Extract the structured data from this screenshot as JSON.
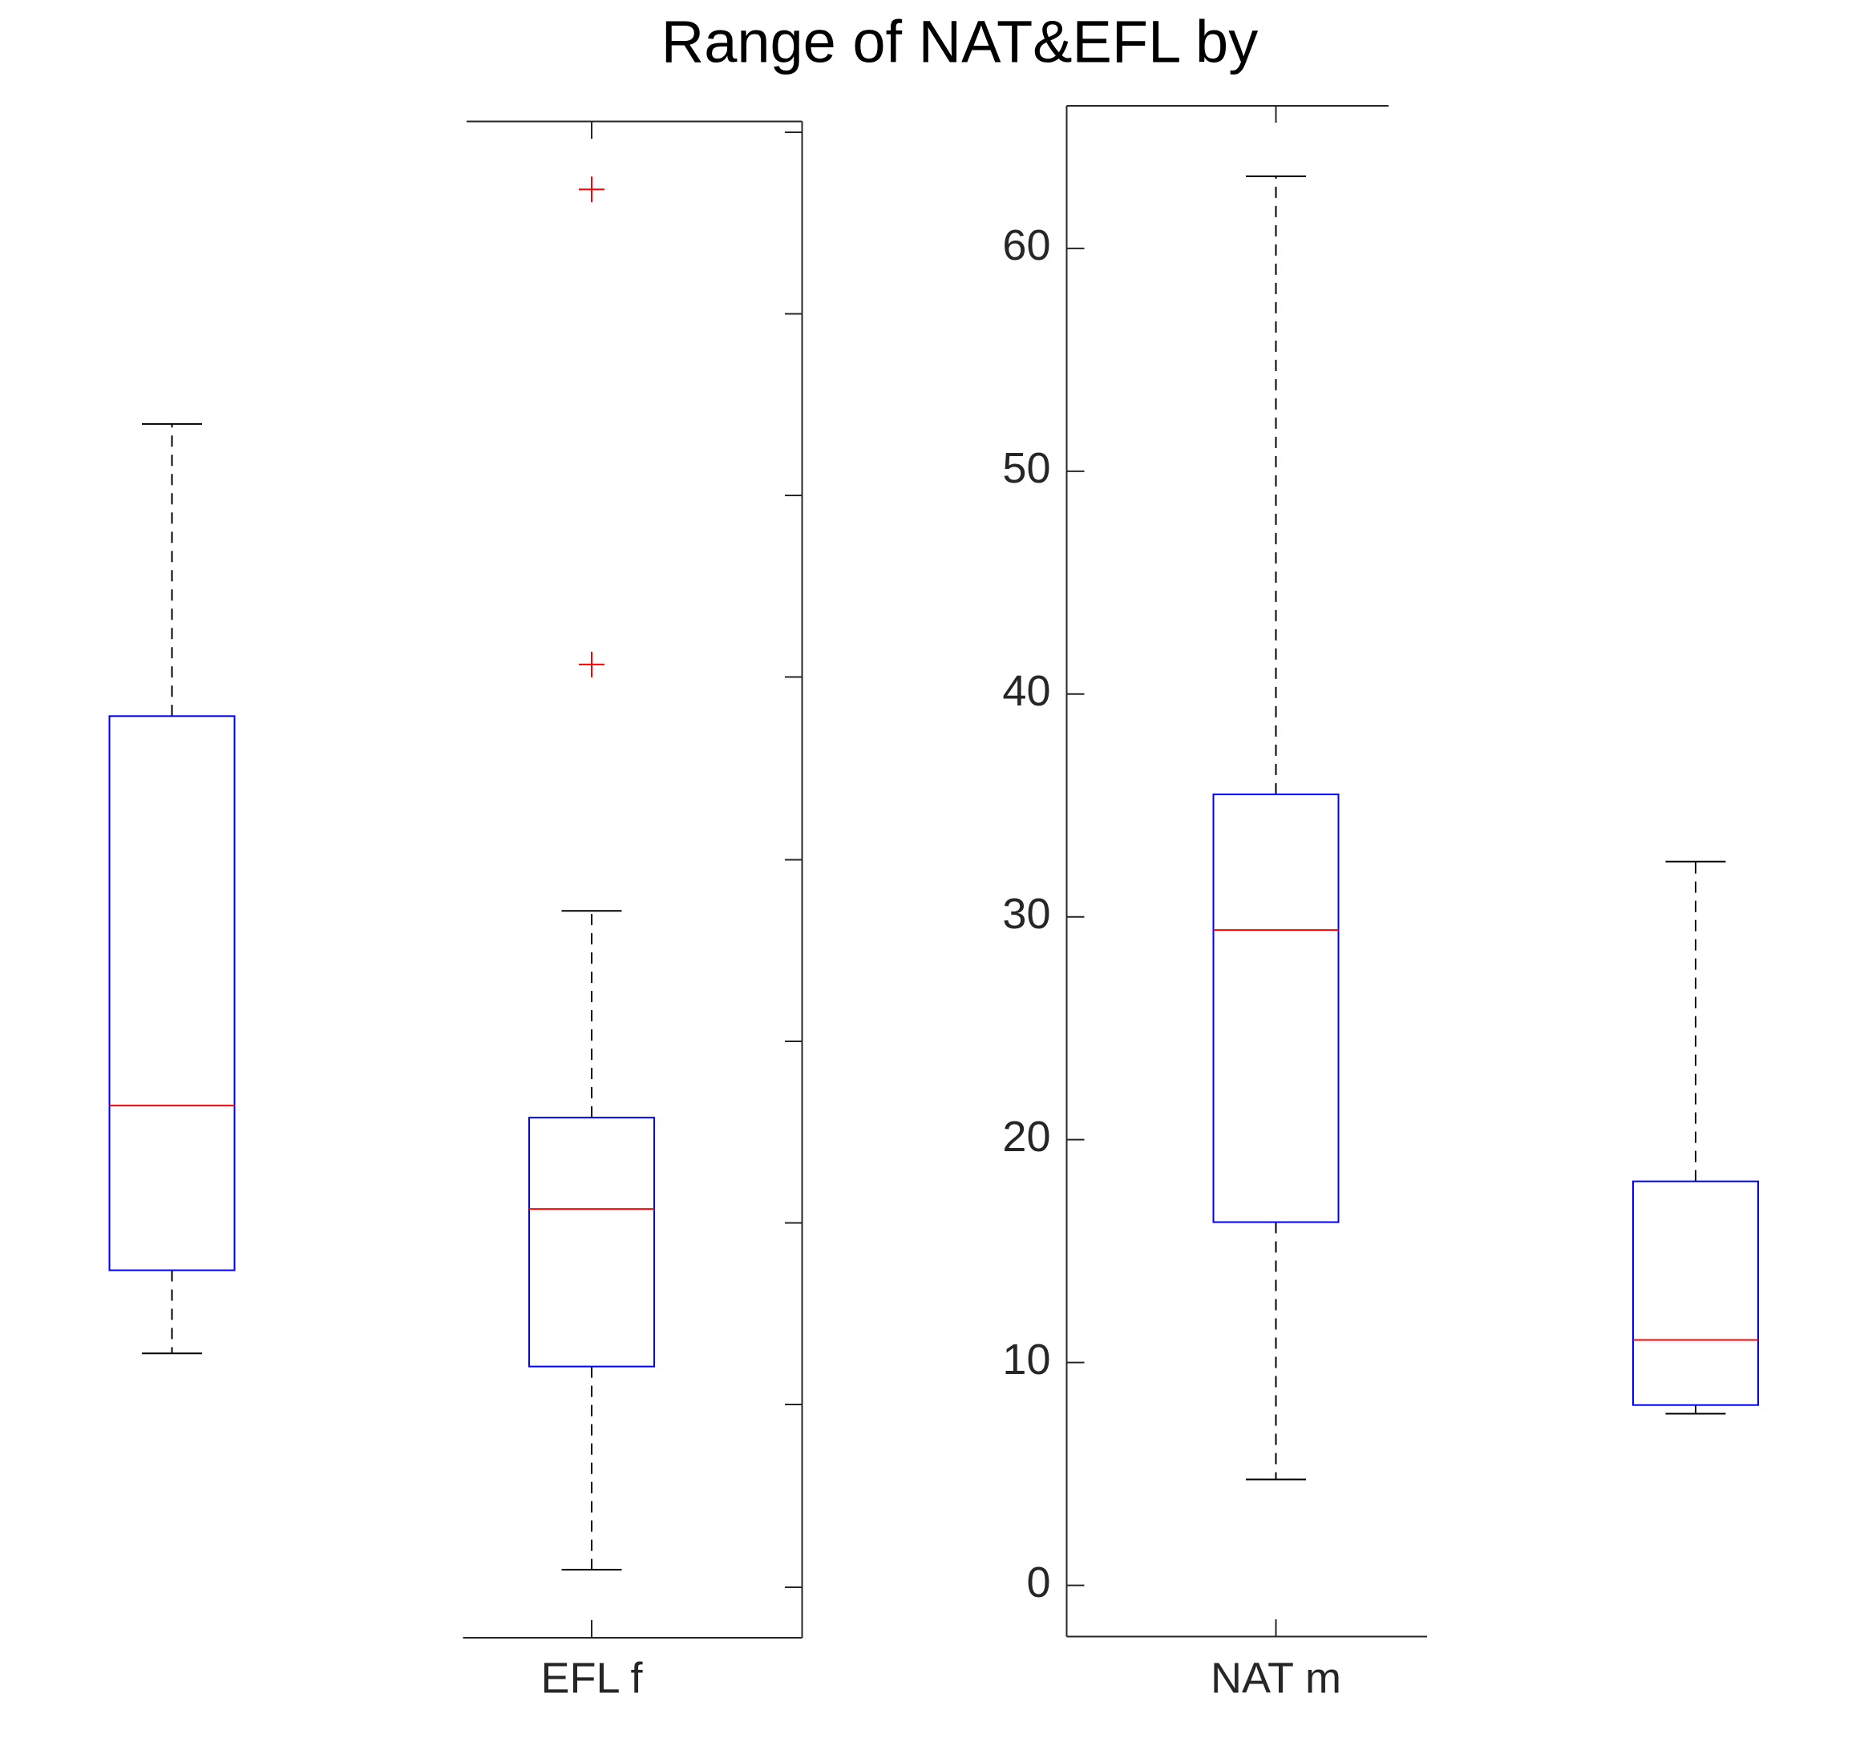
{
  "chart_data": {
    "type": "box",
    "title": "Range of NAT&EFL by",
    "categories": [
      null,
      "EFL f",
      "NAT m",
      null
    ],
    "boxes": [
      {
        "whislo": 10.41,
        "q1": 14.14,
        "med": 21.53,
        "q3": 39.01,
        "whishi": 52.12,
        "fliers": []
      },
      {
        "whislo": 0.7,
        "q1": 9.82,
        "med": 16.89,
        "q3": 20.99,
        "whishi": 30.27,
        "fliers": [
          41.33,
          62.65
        ]
      },
      {
        "whislo": 4.75,
        "q1": 16.3,
        "med": 29.41,
        "q3": 35.5,
        "whishi": 63.24,
        "fliers": []
      },
      {
        "whislo": 7.7,
        "q1": 8.09,
        "med": 11.01,
        "q3": 18.13,
        "whishi": 32.48,
        "fliers": []
      }
    ],
    "box_color": "#0000ff",
    "median_color": "#ff0000",
    "whisker_color": "#000000",
    "flier_color": "#ff0000",
    "ylim": [
      -2.3,
      66.4
    ],
    "yticks": [
      0,
      10,
      20,
      30,
      40,
      50,
      60
    ]
  }
}
